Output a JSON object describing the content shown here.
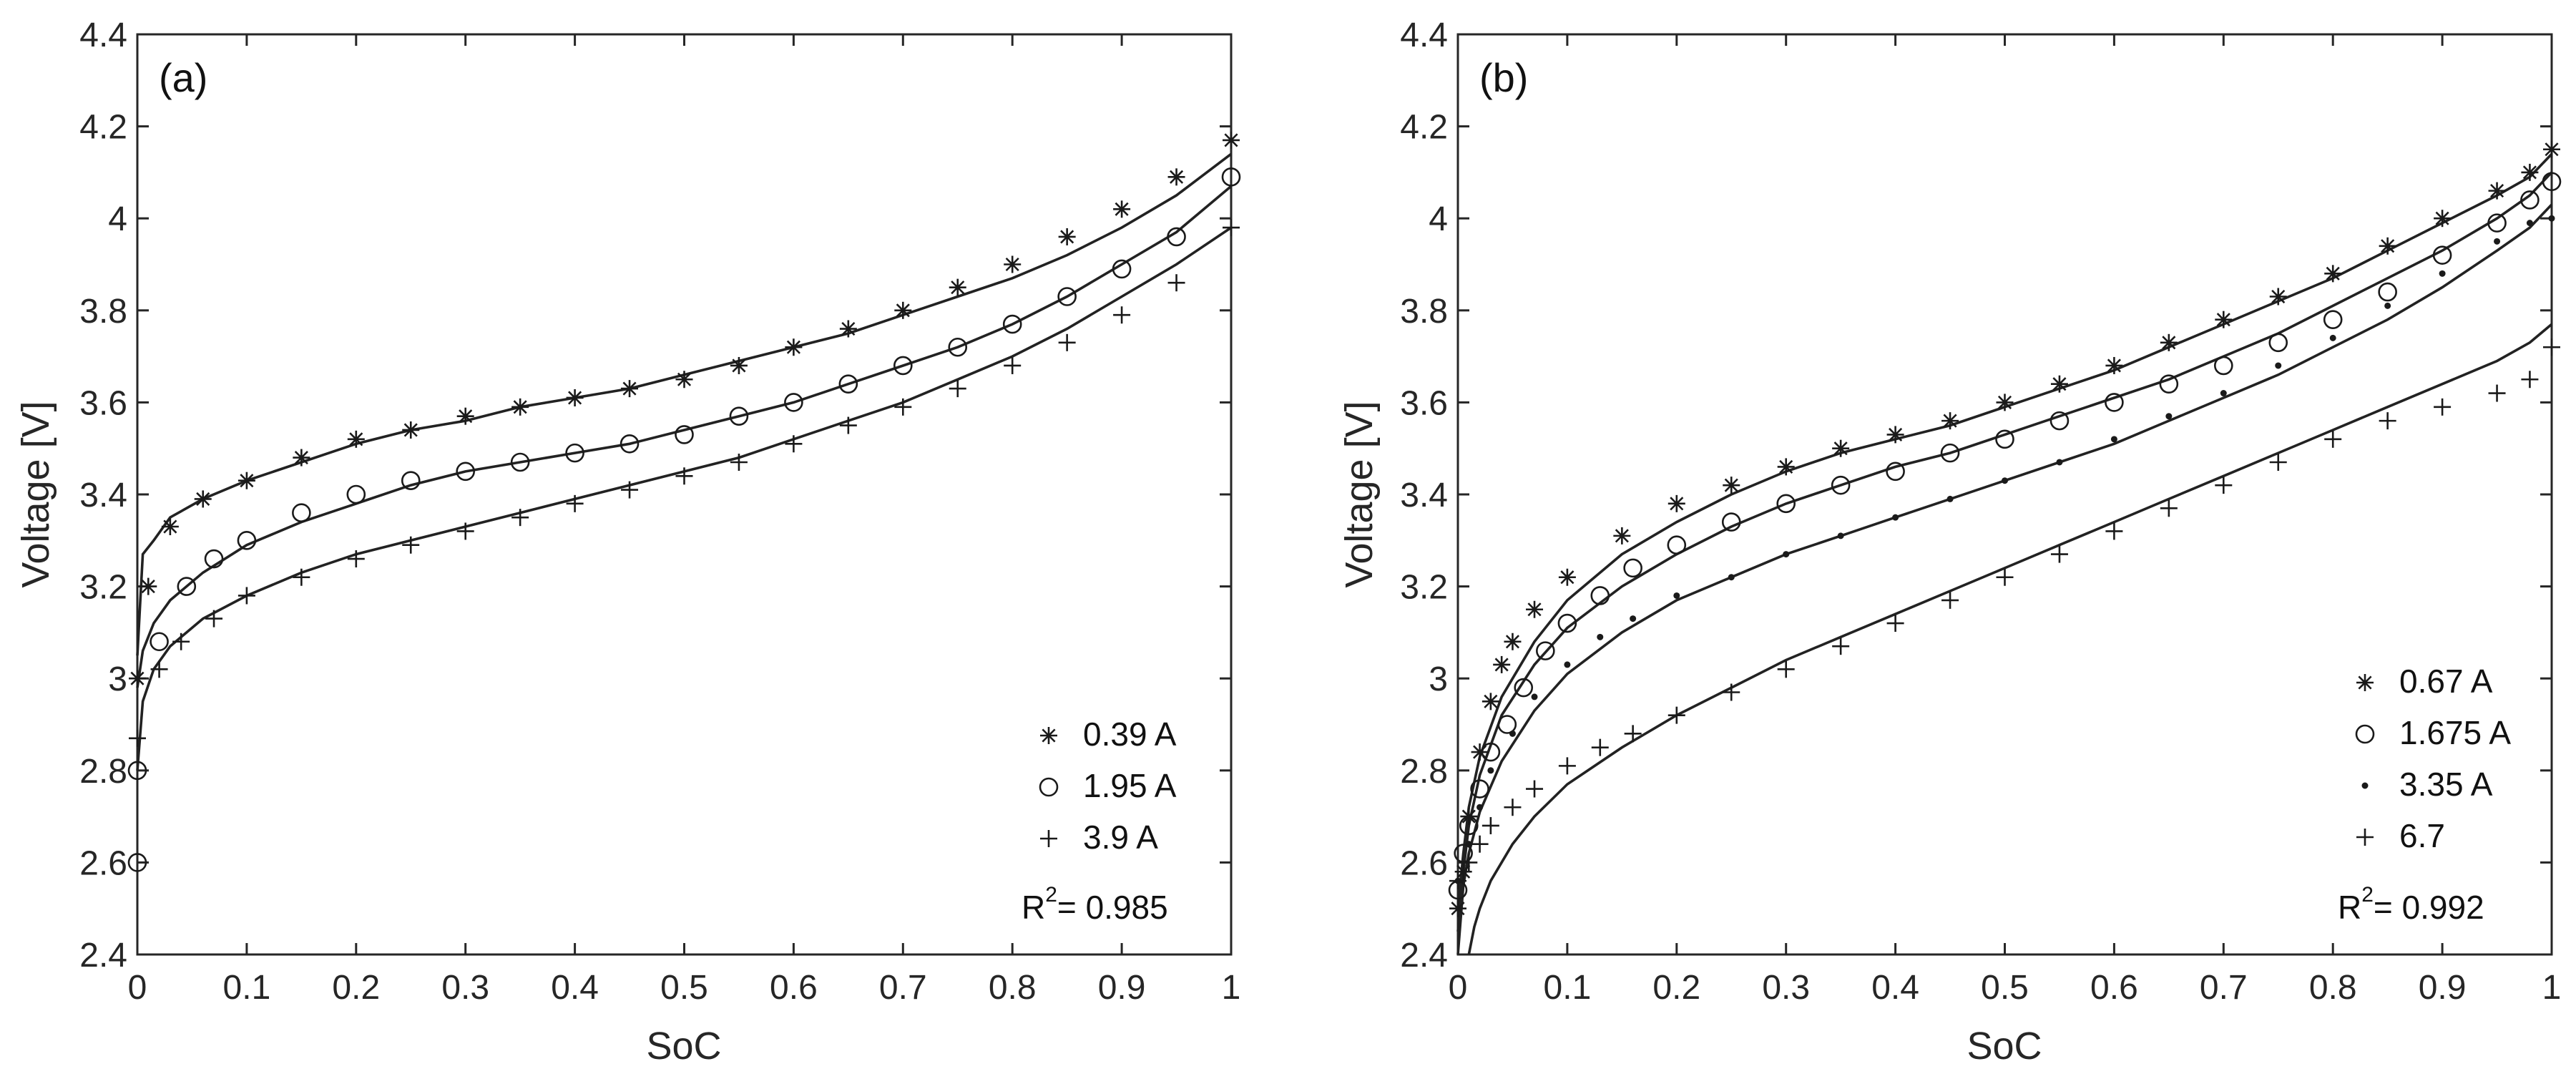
{
  "chart_data": [
    {
      "id": "a",
      "type": "line",
      "panel_label": "(a)",
      "xlabel": "SoC",
      "ylabel": "Voltage [V]",
      "xlim": [
        0,
        1
      ],
      "ylim": [
        2.4,
        4.4
      ],
      "xticks": [
        "0",
        "0.1",
        "0.2",
        "0.3",
        "0.4",
        "0.5",
        "0.6",
        "0.7",
        "0.8",
        "0.9",
        "1"
      ],
      "yticks": [
        "2.4",
        "2.6",
        "2.8",
        "3",
        "3.2",
        "3.4",
        "3.6",
        "3.8",
        "4",
        "4.2",
        "4.4"
      ],
      "annotation": {
        "prefix": "R",
        "sup": "2",
        "text": "= 0.985"
      },
      "legend_position": "bottom-right",
      "series": [
        {
          "name": "0.39 A",
          "marker": "star",
          "soc": [
            0.0,
            0.01,
            0.03,
            0.06,
            0.1,
            0.15,
            0.2,
            0.25,
            0.3,
            0.35,
            0.4,
            0.45,
            0.5,
            0.55,
            0.6,
            0.65,
            0.7,
            0.75,
            0.8,
            0.85,
            0.9,
            0.95,
            1.0
          ],
          "voltage": [
            3.0,
            3.2,
            3.33,
            3.39,
            3.43,
            3.48,
            3.52,
            3.54,
            3.57,
            3.59,
            3.61,
            3.63,
            3.65,
            3.68,
            3.72,
            3.76,
            3.8,
            3.85,
            3.9,
            3.96,
            4.02,
            4.09,
            4.17
          ],
          "fit_soc": [
            0.0,
            0.005,
            0.015,
            0.03,
            0.06,
            0.1,
            0.15,
            0.2,
            0.25,
            0.3,
            0.35,
            0.4,
            0.45,
            0.5,
            0.55,
            0.6,
            0.65,
            0.7,
            0.75,
            0.8,
            0.85,
            0.9,
            0.95,
            1.0
          ],
          "fit_voltage": [
            3.05,
            3.27,
            3.3,
            3.35,
            3.39,
            3.43,
            3.47,
            3.51,
            3.54,
            3.56,
            3.59,
            3.61,
            3.63,
            3.66,
            3.69,
            3.72,
            3.75,
            3.79,
            3.83,
            3.87,
            3.92,
            3.98,
            4.05,
            4.14
          ]
        },
        {
          "name": "1.95 A",
          "marker": "circle",
          "soc": [
            0.0,
            0.0,
            0.02,
            0.045,
            0.07,
            0.1,
            0.15,
            0.2,
            0.25,
            0.3,
            0.35,
            0.4,
            0.45,
            0.5,
            0.55,
            0.6,
            0.65,
            0.7,
            0.75,
            0.8,
            0.85,
            0.9,
            0.95,
            1.0
          ],
          "voltage": [
            2.6,
            2.8,
            3.08,
            3.2,
            3.26,
            3.3,
            3.36,
            3.4,
            3.43,
            3.45,
            3.47,
            3.49,
            3.51,
            3.53,
            3.57,
            3.6,
            3.64,
            3.68,
            3.72,
            3.77,
            3.83,
            3.89,
            3.96,
            4.09
          ],
          "fit_soc": [
            0.0,
            0.005,
            0.015,
            0.03,
            0.06,
            0.1,
            0.15,
            0.2,
            0.25,
            0.3,
            0.35,
            0.4,
            0.45,
            0.5,
            0.55,
            0.6,
            0.65,
            0.7,
            0.75,
            0.8,
            0.85,
            0.9,
            0.95,
            1.0
          ],
          "fit_voltage": [
            2.98,
            3.06,
            3.12,
            3.17,
            3.23,
            3.29,
            3.34,
            3.38,
            3.42,
            3.45,
            3.47,
            3.49,
            3.51,
            3.54,
            3.57,
            3.6,
            3.64,
            3.68,
            3.72,
            3.77,
            3.83,
            3.9,
            3.97,
            4.07
          ]
        },
        {
          "name": "3.9 A",
          "marker": "plus",
          "soc": [
            0.0,
            0.02,
            0.04,
            0.07,
            0.1,
            0.15,
            0.2,
            0.25,
            0.3,
            0.35,
            0.4,
            0.45,
            0.5,
            0.55,
            0.6,
            0.65,
            0.7,
            0.75,
            0.8,
            0.85,
            0.9,
            0.95,
            1.0
          ],
          "voltage": [
            2.87,
            3.02,
            3.08,
            3.13,
            3.18,
            3.22,
            3.26,
            3.29,
            3.32,
            3.35,
            3.38,
            3.41,
            3.44,
            3.47,
            3.51,
            3.55,
            3.59,
            3.63,
            3.68,
            3.73,
            3.79,
            3.86,
            3.98
          ],
          "fit_soc": [
            0.0,
            0.005,
            0.015,
            0.03,
            0.06,
            0.1,
            0.15,
            0.2,
            0.25,
            0.3,
            0.35,
            0.4,
            0.45,
            0.5,
            0.55,
            0.6,
            0.65,
            0.7,
            0.75,
            0.8,
            0.85,
            0.9,
            0.95,
            1.0
          ],
          "fit_voltage": [
            2.8,
            2.95,
            3.02,
            3.07,
            3.13,
            3.18,
            3.23,
            3.27,
            3.3,
            3.33,
            3.36,
            3.39,
            3.42,
            3.45,
            3.48,
            3.52,
            3.56,
            3.6,
            3.65,
            3.7,
            3.76,
            3.83,
            3.9,
            3.98
          ]
        }
      ]
    },
    {
      "id": "b",
      "type": "line",
      "panel_label": "(b)",
      "xlabel": "SoC",
      "ylabel": "Voltage [V]",
      "xlim": [
        0,
        1
      ],
      "ylim": [
        2.4,
        4.4
      ],
      "xticks": [
        "0",
        "0.1",
        "0.2",
        "0.3",
        "0.4",
        "0.5",
        "0.6",
        "0.7",
        "0.8",
        "0.9",
        "1"
      ],
      "yticks": [
        "2.4",
        "2.6",
        "2.8",
        "3",
        "3.2",
        "3.4",
        "3.6",
        "3.8",
        "4",
        "4.2",
        "4.4"
      ],
      "annotation": {
        "prefix": "R",
        "sup": "2",
        "text": "= 0.992"
      },
      "legend_position": "bottom-right",
      "series": [
        {
          "name": "0.67 A",
          "marker": "star",
          "soc": [
            0.0,
            0.005,
            0.01,
            0.02,
            0.03,
            0.04,
            0.05,
            0.07,
            0.1,
            0.15,
            0.2,
            0.25,
            0.3,
            0.35,
            0.4,
            0.45,
            0.5,
            0.55,
            0.6,
            0.65,
            0.7,
            0.75,
            0.8,
            0.85,
            0.9,
            0.95,
            0.98,
            1.0
          ],
          "voltage": [
            2.5,
            2.58,
            2.7,
            2.84,
            2.95,
            3.03,
            3.08,
            3.15,
            3.22,
            3.31,
            3.38,
            3.42,
            3.46,
            3.5,
            3.53,
            3.56,
            3.6,
            3.64,
            3.68,
            3.73,
            3.78,
            3.83,
            3.88,
            3.94,
            4.0,
            4.06,
            4.1,
            4.15
          ],
          "fit_soc": [
            0.0,
            0.005,
            0.01,
            0.02,
            0.04,
            0.07,
            0.1,
            0.15,
            0.2,
            0.25,
            0.3,
            0.35,
            0.4,
            0.45,
            0.5,
            0.55,
            0.6,
            0.65,
            0.7,
            0.75,
            0.8,
            0.85,
            0.9,
            0.95,
            0.98,
            1.0
          ],
          "fit_voltage": [
            2.5,
            2.62,
            2.72,
            2.83,
            2.96,
            3.08,
            3.17,
            3.27,
            3.34,
            3.4,
            3.45,
            3.49,
            3.52,
            3.55,
            3.59,
            3.63,
            3.67,
            3.72,
            3.77,
            3.82,
            3.87,
            3.93,
            3.99,
            4.05,
            4.09,
            4.14
          ]
        },
        {
          "name": "1.675 A",
          "marker": "circle",
          "soc": [
            0.0,
            0.005,
            0.01,
            0.02,
            0.03,
            0.045,
            0.06,
            0.08,
            0.1,
            0.13,
            0.16,
            0.2,
            0.25,
            0.3,
            0.35,
            0.4,
            0.45,
            0.5,
            0.55,
            0.6,
            0.65,
            0.7,
            0.75,
            0.8,
            0.85,
            0.9,
            0.95,
            0.98,
            1.0
          ],
          "voltage": [
            2.54,
            2.62,
            2.68,
            2.76,
            2.84,
            2.9,
            2.98,
            3.06,
            3.12,
            3.18,
            3.24,
            3.29,
            3.34,
            3.38,
            3.42,
            3.45,
            3.49,
            3.52,
            3.56,
            3.6,
            3.64,
            3.68,
            3.73,
            3.78,
            3.84,
            3.92,
            3.99,
            4.04,
            4.08
          ],
          "fit_soc": [
            0.0,
            0.005,
            0.01,
            0.02,
            0.04,
            0.07,
            0.1,
            0.15,
            0.2,
            0.25,
            0.3,
            0.35,
            0.4,
            0.45,
            0.5,
            0.55,
            0.6,
            0.65,
            0.7,
            0.75,
            0.8,
            0.85,
            0.9,
            0.95,
            0.98,
            1.0
          ],
          "fit_voltage": [
            2.45,
            2.58,
            2.68,
            2.79,
            2.92,
            3.03,
            3.11,
            3.2,
            3.27,
            3.33,
            3.38,
            3.42,
            3.46,
            3.49,
            3.53,
            3.57,
            3.61,
            3.65,
            3.7,
            3.75,
            3.81,
            3.87,
            3.93,
            4.0,
            4.05,
            4.1
          ]
        },
        {
          "name": "3.35 A",
          "marker": "dot",
          "soc": [
            0.0,
            0.01,
            0.02,
            0.03,
            0.05,
            0.07,
            0.1,
            0.13,
            0.16,
            0.2,
            0.25,
            0.3,
            0.35,
            0.4,
            0.45,
            0.5,
            0.55,
            0.6,
            0.65,
            0.7,
            0.75,
            0.8,
            0.85,
            0.9,
            0.95,
            0.98,
            1.0
          ],
          "voltage": [
            2.56,
            2.64,
            2.72,
            2.8,
            2.88,
            2.96,
            3.03,
            3.09,
            3.13,
            3.18,
            3.22,
            3.27,
            3.31,
            3.35,
            3.39,
            3.43,
            3.47,
            3.52,
            3.57,
            3.62,
            3.68,
            3.74,
            3.81,
            3.88,
            3.95,
            3.99,
            4.0
          ],
          "fit_soc": [
            0.0,
            0.005,
            0.01,
            0.02,
            0.04,
            0.07,
            0.1,
            0.15,
            0.2,
            0.25,
            0.3,
            0.35,
            0.4,
            0.45,
            0.5,
            0.55,
            0.6,
            0.65,
            0.7,
            0.75,
            0.8,
            0.85,
            0.9,
            0.95,
            0.98,
            1.0
          ],
          "fit_voltage": [
            2.4,
            2.55,
            2.62,
            2.71,
            2.82,
            2.93,
            3.01,
            3.1,
            3.17,
            3.22,
            3.27,
            3.31,
            3.35,
            3.39,
            3.43,
            3.47,
            3.51,
            3.56,
            3.61,
            3.66,
            3.72,
            3.78,
            3.85,
            3.93,
            3.98,
            4.03
          ]
        },
        {
          "name": "6.7",
          "marker": "plus",
          "soc": [
            0.0,
            0.01,
            0.02,
            0.03,
            0.05,
            0.07,
            0.1,
            0.13,
            0.16,
            0.2,
            0.25,
            0.3,
            0.35,
            0.4,
            0.45,
            0.5,
            0.55,
            0.6,
            0.65,
            0.7,
            0.75,
            0.8,
            0.85,
            0.9,
            0.95,
            0.98,
            1.0
          ],
          "voltage": [
            2.56,
            2.6,
            2.64,
            2.68,
            2.72,
            2.76,
            2.81,
            2.85,
            2.88,
            2.92,
            2.97,
            3.02,
            3.07,
            3.12,
            3.17,
            3.22,
            3.27,
            3.32,
            3.37,
            3.42,
            3.47,
            3.52,
            3.56,
            3.59,
            3.62,
            3.65,
            3.72
          ],
          "fit_soc": [
            0.01,
            0.015,
            0.02,
            0.03,
            0.05,
            0.07,
            0.1,
            0.15,
            0.2,
            0.25,
            0.3,
            0.35,
            0.4,
            0.45,
            0.5,
            0.55,
            0.6,
            0.65,
            0.7,
            0.75,
            0.8,
            0.85,
            0.9,
            0.95,
            0.98,
            1.0
          ],
          "fit_voltage": [
            2.4,
            2.46,
            2.5,
            2.56,
            2.64,
            2.7,
            2.77,
            2.85,
            2.92,
            2.98,
            3.04,
            3.09,
            3.14,
            3.19,
            3.24,
            3.29,
            3.34,
            3.39,
            3.44,
            3.49,
            3.54,
            3.59,
            3.64,
            3.69,
            3.73,
            3.77
          ]
        }
      ]
    }
  ]
}
